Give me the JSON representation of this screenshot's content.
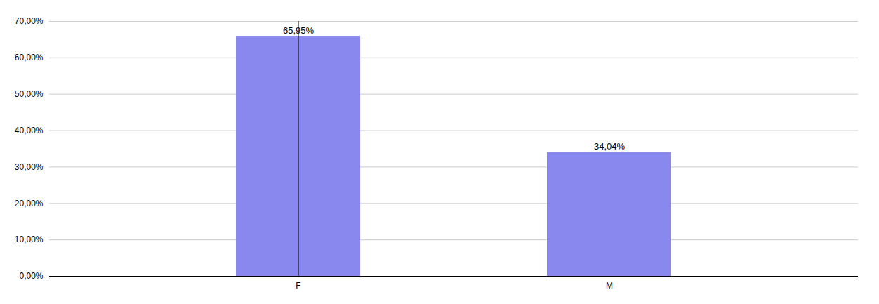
{
  "chart_data": {
    "type": "bar",
    "categories": [
      "F",
      "M"
    ],
    "values": [
      0.6595,
      0.3404
    ],
    "value_labels": [
      "65,95%",
      "34,04%"
    ],
    "color": "#8888EE",
    "ylim": [
      0,
      0.7
    ],
    "yticks": [
      {
        "value": 0.0,
        "label": "0,00%"
      },
      {
        "value": 0.1,
        "label": "10,00%"
      },
      {
        "value": 0.2,
        "label": "20,00%"
      },
      {
        "value": 0.3,
        "label": "30,00%"
      },
      {
        "value": 0.4,
        "label": "40,00%"
      },
      {
        "value": 0.5,
        "label": "50,00%"
      },
      {
        "value": 0.6,
        "label": "60,00%"
      },
      {
        "value": 0.7,
        "label": "70,00%"
      }
    ],
    "grid": true,
    "data_labels": true
  }
}
